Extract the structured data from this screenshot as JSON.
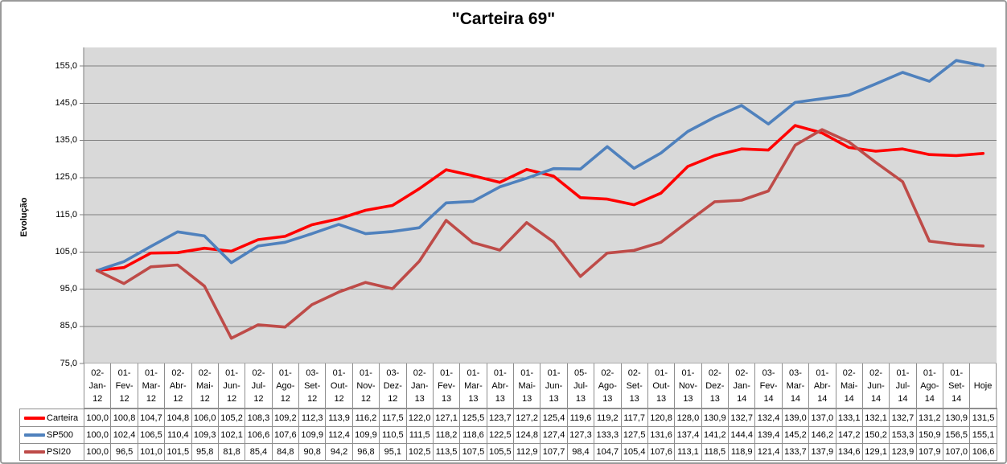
{
  "header": {
    "title": "\"Carteira 69\""
  },
  "y_axis": {
    "label": "Evolução",
    "tick_labels": [
      "155,0",
      "145,0",
      "135,0",
      "125,0",
      "115,0",
      "105,0",
      "95,0",
      "85,0",
      "75,0"
    ],
    "tick_start": 75,
    "tick_end": 155,
    "tick_step": 10
  },
  "x_axis": {
    "last_label": "Hoje"
  },
  "colors": {
    "plot_bg": "#d9d9d9",
    "gridline": "#7f7f7f",
    "table_border": "#8e8e8e",
    "frame_border": "#9a9a9a",
    "text": "#000000",
    "series_carteira": "#ff0000",
    "series_sp500": "#4f81bd",
    "series_psi20": "#be4b48"
  },
  "chart_data": {
    "type": "line",
    "title": "\"Carteira 69\"",
    "xlabel": "",
    "ylabel": "Evolução",
    "ylim": [
      75,
      160
    ],
    "grid": "horizontal-major",
    "legend_position": "data-table-left-column",
    "number_format": "decimal-comma-1dp",
    "categories": [
      "02-Jan-12",
      "01-Fev-12",
      "01-Mar-12",
      "02-Abr-12",
      "02-Mai-12",
      "01-Jun-12",
      "02-Jul-12",
      "01-Ago-12",
      "03-Set-12",
      "01-Out-12",
      "01-Nov-12",
      "03-Dez-12",
      "02-Jan-13",
      "01-Fev-13",
      "01-Mar-13",
      "01-Abr-13",
      "01-Mai-13",
      "01-Jun-13",
      "05-Jul-13",
      "02-Ago-13",
      "02-Set-13",
      "01-Out-13",
      "01-Nov-13",
      "02-Dez-13",
      "02-Jan-14",
      "03-Fev-14",
      "03-Mar-14",
      "01-Abr-14",
      "02-Mai-14",
      "02-Jun-14",
      "01-Jul-14",
      "01-Ago-14",
      "01-Set-14",
      "Hoje"
    ],
    "series": [
      {
        "name": "Carteira",
        "color": "#ff0000",
        "values": [
          100.0,
          100.8,
          104.7,
          104.8,
          106.0,
          105.2,
          108.3,
          109.2,
          112.3,
          113.9,
          116.2,
          117.5,
          122.0,
          127.1,
          125.5,
          123.7,
          127.2,
          125.4,
          119.6,
          119.2,
          117.7,
          120.8,
          128.0,
          130.9,
          132.7,
          132.4,
          139.0,
          137.0,
          133.1,
          132.1,
          132.7,
          131.2,
          130.9,
          131.5
        ]
      },
      {
        "name": "SP500",
        "color": "#4f81bd",
        "values": [
          100.0,
          102.4,
          106.5,
          110.4,
          109.3,
          102.1,
          106.6,
          107.6,
          109.9,
          112.4,
          109.9,
          110.5,
          111.5,
          118.2,
          118.6,
          122.5,
          124.8,
          127.4,
          127.3,
          133.3,
          127.5,
          131.6,
          137.4,
          141.2,
          144.4,
          139.4,
          145.2,
          146.2,
          147.2,
          150.2,
          153.3,
          150.9,
          156.5,
          155.1
        ]
      },
      {
        "name": "PSI20",
        "color": "#be4b48",
        "values": [
          100.0,
          96.5,
          101.0,
          101.5,
          95.8,
          81.8,
          85.4,
          84.8,
          90.8,
          94.2,
          96.8,
          95.1,
          102.5,
          113.5,
          107.5,
          105.5,
          112.9,
          107.7,
          98.4,
          104.7,
          105.4,
          107.6,
          113.1,
          118.5,
          118.9,
          121.4,
          133.7,
          137.9,
          134.6,
          129.1,
          123.9,
          107.9,
          107.0,
          106.6
        ]
      }
    ]
  }
}
